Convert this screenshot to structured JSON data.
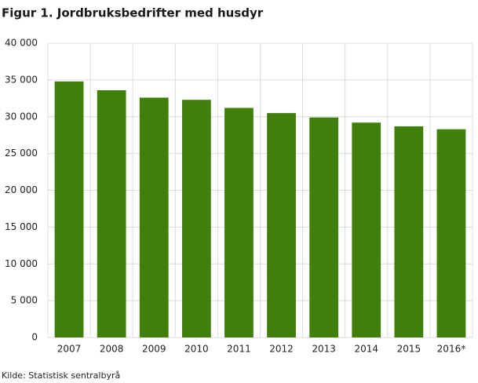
{
  "chart_data": {
    "type": "bar",
    "title": "Figur 1. Jordbruksbedrifter med husdyr",
    "source": "Kilde: Statistisk sentralbyrå",
    "categories": [
      "2007",
      "2008",
      "2009",
      "2010",
      "2011",
      "2012",
      "2013",
      "2014",
      "2015",
      "2016*"
    ],
    "values": [
      34800,
      33600,
      32600,
      32300,
      31200,
      30500,
      29900,
      29200,
      28700,
      28300
    ],
    "color": "#3f7f0a",
    "ylim": [
      0,
      40000
    ],
    "yticks": [
      0,
      {
        "value": 5000,
        "label": "5 000"
      },
      {
        "value": 10000,
        "label": "10 000"
      },
      {
        "value": 15000,
        "label": "15 000"
      },
      {
        "value": 20000,
        "label": "20 000"
      },
      {
        "value": 25000,
        "label": "25 000"
      },
      {
        "value": 30000,
        "label": "30 000"
      },
      {
        "value": 35000,
        "label": "35 000"
      },
      {
        "value": 40000,
        "label": "40 000"
      }
    ],
    "grid": true
  }
}
